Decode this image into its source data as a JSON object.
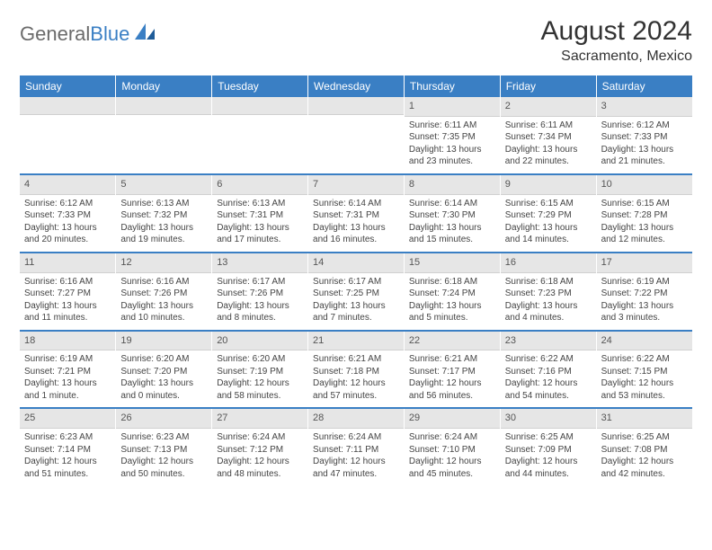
{
  "brand": {
    "text1": "General",
    "text2": "Blue",
    "color1": "#6b6b6b",
    "color2": "#3a7fc4"
  },
  "title": "August 2024",
  "location": "Sacramento, Mexico",
  "header_bg": "#3a7fc4",
  "daynum_bg": "#e6e6e6",
  "sep_color": "#3a7fc4",
  "weekdays": [
    "Sunday",
    "Monday",
    "Tuesday",
    "Wednesday",
    "Thursday",
    "Friday",
    "Saturday"
  ],
  "weeks": [
    [
      {
        "n": "",
        "lines": [
          "",
          "",
          "",
          ""
        ]
      },
      {
        "n": "",
        "lines": [
          "",
          "",
          "",
          ""
        ]
      },
      {
        "n": "",
        "lines": [
          "",
          "",
          "",
          ""
        ]
      },
      {
        "n": "",
        "lines": [
          "",
          "",
          "",
          ""
        ]
      },
      {
        "n": "1",
        "lines": [
          "Sunrise: 6:11 AM",
          "Sunset: 7:35 PM",
          "Daylight: 13 hours",
          "and 23 minutes."
        ]
      },
      {
        "n": "2",
        "lines": [
          "Sunrise: 6:11 AM",
          "Sunset: 7:34 PM",
          "Daylight: 13 hours",
          "and 22 minutes."
        ]
      },
      {
        "n": "3",
        "lines": [
          "Sunrise: 6:12 AM",
          "Sunset: 7:33 PM",
          "Daylight: 13 hours",
          "and 21 minutes."
        ]
      }
    ],
    [
      {
        "n": "4",
        "lines": [
          "Sunrise: 6:12 AM",
          "Sunset: 7:33 PM",
          "Daylight: 13 hours",
          "and 20 minutes."
        ]
      },
      {
        "n": "5",
        "lines": [
          "Sunrise: 6:13 AM",
          "Sunset: 7:32 PM",
          "Daylight: 13 hours",
          "and 19 minutes."
        ]
      },
      {
        "n": "6",
        "lines": [
          "Sunrise: 6:13 AM",
          "Sunset: 7:31 PM",
          "Daylight: 13 hours",
          "and 17 minutes."
        ]
      },
      {
        "n": "7",
        "lines": [
          "Sunrise: 6:14 AM",
          "Sunset: 7:31 PM",
          "Daylight: 13 hours",
          "and 16 minutes."
        ]
      },
      {
        "n": "8",
        "lines": [
          "Sunrise: 6:14 AM",
          "Sunset: 7:30 PM",
          "Daylight: 13 hours",
          "and 15 minutes."
        ]
      },
      {
        "n": "9",
        "lines": [
          "Sunrise: 6:15 AM",
          "Sunset: 7:29 PM",
          "Daylight: 13 hours",
          "and 14 minutes."
        ]
      },
      {
        "n": "10",
        "lines": [
          "Sunrise: 6:15 AM",
          "Sunset: 7:28 PM",
          "Daylight: 13 hours",
          "and 12 minutes."
        ]
      }
    ],
    [
      {
        "n": "11",
        "lines": [
          "Sunrise: 6:16 AM",
          "Sunset: 7:27 PM",
          "Daylight: 13 hours",
          "and 11 minutes."
        ]
      },
      {
        "n": "12",
        "lines": [
          "Sunrise: 6:16 AM",
          "Sunset: 7:26 PM",
          "Daylight: 13 hours",
          "and 10 minutes."
        ]
      },
      {
        "n": "13",
        "lines": [
          "Sunrise: 6:17 AM",
          "Sunset: 7:26 PM",
          "Daylight: 13 hours",
          "and 8 minutes."
        ]
      },
      {
        "n": "14",
        "lines": [
          "Sunrise: 6:17 AM",
          "Sunset: 7:25 PM",
          "Daylight: 13 hours",
          "and 7 minutes."
        ]
      },
      {
        "n": "15",
        "lines": [
          "Sunrise: 6:18 AM",
          "Sunset: 7:24 PM",
          "Daylight: 13 hours",
          "and 5 minutes."
        ]
      },
      {
        "n": "16",
        "lines": [
          "Sunrise: 6:18 AM",
          "Sunset: 7:23 PM",
          "Daylight: 13 hours",
          "and 4 minutes."
        ]
      },
      {
        "n": "17",
        "lines": [
          "Sunrise: 6:19 AM",
          "Sunset: 7:22 PM",
          "Daylight: 13 hours",
          "and 3 minutes."
        ]
      }
    ],
    [
      {
        "n": "18",
        "lines": [
          "Sunrise: 6:19 AM",
          "Sunset: 7:21 PM",
          "Daylight: 13 hours",
          "and 1 minute."
        ]
      },
      {
        "n": "19",
        "lines": [
          "Sunrise: 6:20 AM",
          "Sunset: 7:20 PM",
          "Daylight: 13 hours",
          "and 0 minutes."
        ]
      },
      {
        "n": "20",
        "lines": [
          "Sunrise: 6:20 AM",
          "Sunset: 7:19 PM",
          "Daylight: 12 hours",
          "and 58 minutes."
        ]
      },
      {
        "n": "21",
        "lines": [
          "Sunrise: 6:21 AM",
          "Sunset: 7:18 PM",
          "Daylight: 12 hours",
          "and 57 minutes."
        ]
      },
      {
        "n": "22",
        "lines": [
          "Sunrise: 6:21 AM",
          "Sunset: 7:17 PM",
          "Daylight: 12 hours",
          "and 56 minutes."
        ]
      },
      {
        "n": "23",
        "lines": [
          "Sunrise: 6:22 AM",
          "Sunset: 7:16 PM",
          "Daylight: 12 hours",
          "and 54 minutes."
        ]
      },
      {
        "n": "24",
        "lines": [
          "Sunrise: 6:22 AM",
          "Sunset: 7:15 PM",
          "Daylight: 12 hours",
          "and 53 minutes."
        ]
      }
    ],
    [
      {
        "n": "25",
        "lines": [
          "Sunrise: 6:23 AM",
          "Sunset: 7:14 PM",
          "Daylight: 12 hours",
          "and 51 minutes."
        ]
      },
      {
        "n": "26",
        "lines": [
          "Sunrise: 6:23 AM",
          "Sunset: 7:13 PM",
          "Daylight: 12 hours",
          "and 50 minutes."
        ]
      },
      {
        "n": "27",
        "lines": [
          "Sunrise: 6:24 AM",
          "Sunset: 7:12 PM",
          "Daylight: 12 hours",
          "and 48 minutes."
        ]
      },
      {
        "n": "28",
        "lines": [
          "Sunrise: 6:24 AM",
          "Sunset: 7:11 PM",
          "Daylight: 12 hours",
          "and 47 minutes."
        ]
      },
      {
        "n": "29",
        "lines": [
          "Sunrise: 6:24 AM",
          "Sunset: 7:10 PM",
          "Daylight: 12 hours",
          "and 45 minutes."
        ]
      },
      {
        "n": "30",
        "lines": [
          "Sunrise: 6:25 AM",
          "Sunset: 7:09 PM",
          "Daylight: 12 hours",
          "and 44 minutes."
        ]
      },
      {
        "n": "31",
        "lines": [
          "Sunrise: 6:25 AM",
          "Sunset: 7:08 PM",
          "Daylight: 12 hours",
          "and 42 minutes."
        ]
      }
    ]
  ]
}
